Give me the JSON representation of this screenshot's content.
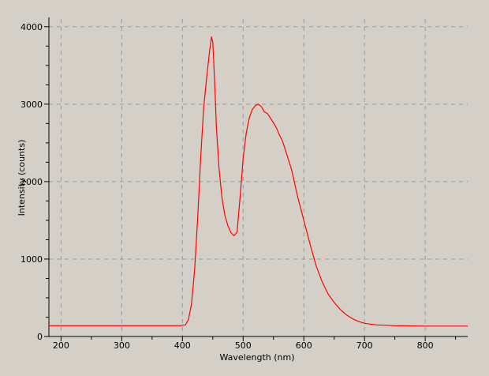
{
  "chart_data": {
    "type": "line",
    "title": "",
    "xlabel": "Wavelength (nm)",
    "ylabel": "Intensity (counts)",
    "xlim": [
      180,
      870
    ],
    "ylim": [
      0,
      4100
    ],
    "x_ticks": [
      200,
      300,
      400,
      500,
      600,
      700,
      800
    ],
    "y_ticks": [
      0,
      1000,
      2000,
      3000,
      4000
    ],
    "grid": true,
    "background": "#d4d0c8",
    "grid_color": "#9a9a9a",
    "series": [
      {
        "color": "#ff0000",
        "x": [
          180,
          300,
          395,
          405,
          410,
          415,
          420,
          425,
          430,
          435,
          440,
          445,
          448,
          450,
          453,
          456,
          460,
          465,
          470,
          475,
          480,
          485,
          490,
          495,
          500,
          505,
          510,
          515,
          520,
          525,
          530,
          535,
          540,
          545,
          550,
          555,
          560,
          565,
          570,
          580,
          590,
          600,
          610,
          620,
          630,
          640,
          650,
          660,
          670,
          680,
          690,
          700,
          720,
          750,
          800,
          870
        ],
        "y": [
          140,
          140,
          140,
          150,
          220,
          420,
          850,
          1500,
          2300,
          2950,
          3350,
          3700,
          3870,
          3800,
          3300,
          2700,
          2200,
          1800,
          1560,
          1430,
          1340,
          1300,
          1350,
          1800,
          2300,
          2620,
          2820,
          2930,
          2980,
          3000,
          2970,
          2900,
          2880,
          2820,
          2760,
          2690,
          2600,
          2520,
          2400,
          2150,
          1800,
          1500,
          1200,
          920,
          710,
          550,
          440,
          350,
          280,
          230,
          195,
          170,
          150,
          140,
          135,
          135
        ]
      }
    ]
  }
}
